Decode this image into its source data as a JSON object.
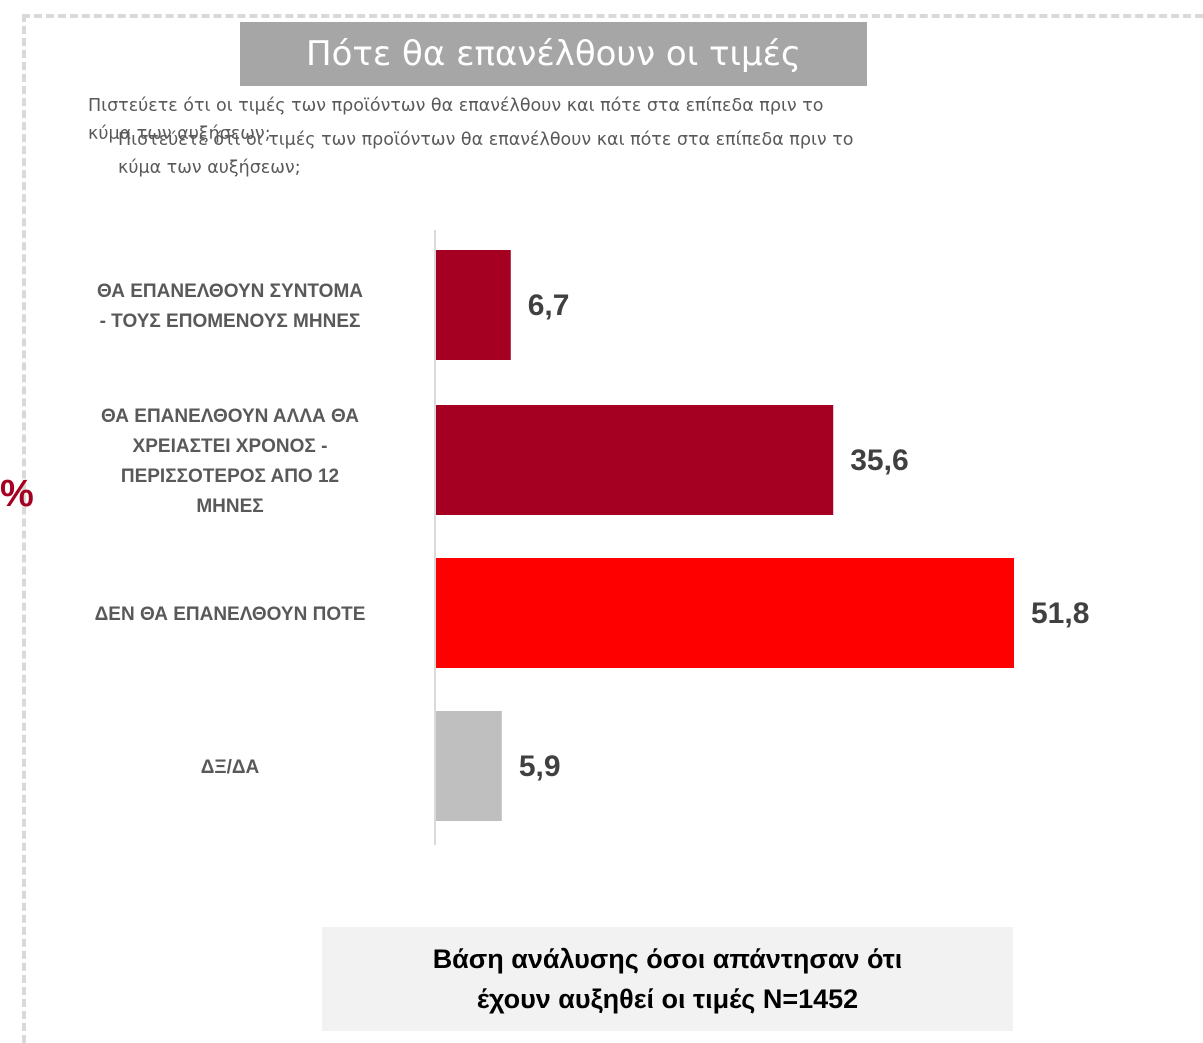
{
  "header": {
    "title": "Πότε θα επανέλθουν οι τιμές",
    "subtitle_lines": [
      "Πιστεύετε ότι οι τιμές των προϊόντων θα επανέλθουν και πότε στα επίπεδα πριν το",
      "κύμα των αυξήσεων;"
    ],
    "edge_fragment": "%"
  },
  "chart_data": {
    "type": "bar",
    "orientation": "horizontal",
    "categories": [
      [
        "ΘΑ ΕΠΑΝΕΛΘΟΥΝ ΣΥΝΤΟΜΑ",
        "- ΤΟΥΣ ΕΠΟΜΕΝΟΥΣ ΜΗΝΕΣ"
      ],
      [
        "ΘΑ ΕΠΑΝΕΛΘΟΥΝ ΑΛΛΑ ΘΑ",
        "ΧΡΕΙΑΣΤΕΙ ΧΡΟΝΟΣ -",
        "ΠΕΡΙΣΣΟΤΕΡΟΣ ΑΠΟ 12",
        "ΜΗΝΕΣ"
      ],
      [
        "ΔΕΝ ΘΑ ΕΠΑΝΕΛΘΟΥΝ ΠΟΤΕ"
      ],
      [
        "ΔΞ/ΔΑ"
      ]
    ],
    "values": [
      6.7,
      35.6,
      51.8,
      5.9
    ],
    "value_labels": [
      "6,7",
      "35,6",
      "51,8",
      "5,9"
    ],
    "colors": [
      "#a50021",
      "#a50021",
      "#ff0000",
      "#bfbfbf"
    ],
    "xlim": [
      0,
      60
    ],
    "grid": false,
    "legend": "none"
  },
  "footnote": {
    "lines": [
      "Βάση ανάλυσης όσοι απάντησαν ότι",
      "έχουν αυξηθεί οι τιμές Ν=1452"
    ]
  }
}
